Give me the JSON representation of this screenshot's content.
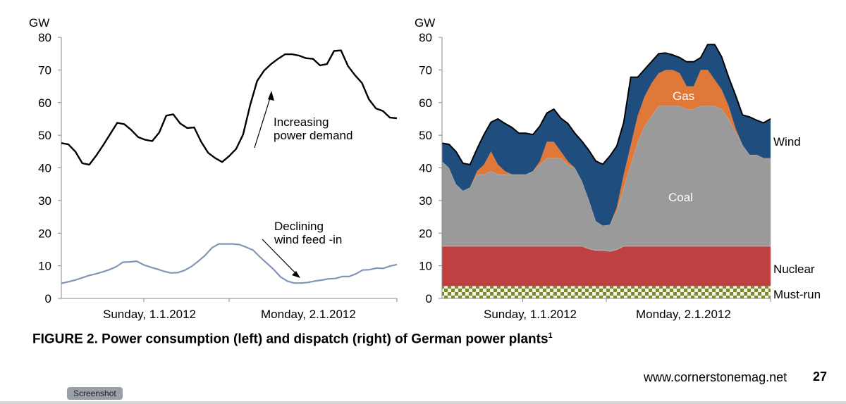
{
  "chart_data": [
    {
      "type": "line",
      "unit": "GW",
      "yticks": [
        "80",
        "70",
        "60",
        "50",
        "40",
        "30",
        "20",
        "10",
        "0"
      ],
      "ylim": [
        0,
        80
      ],
      "xlim": [
        0,
        47
      ],
      "xlabels": [
        "Sunday,  1.1.2012",
        "Monday,  2.1.2012"
      ],
      "series": [
        {
          "name": "Power demand",
          "color": "#000000",
          "values": [
            47.6,
            47.2,
            45,
            41.4,
            41,
            43.8,
            47,
            50.4,
            53.8,
            53.4,
            51.6,
            49.4,
            48.6,
            48.2,
            50.8,
            56,
            56.4,
            53.6,
            52.2,
            52.4,
            48,
            44.6,
            43,
            41.8,
            43.6,
            45.8,
            50.2,
            59.2,
            66.6,
            69.8,
            71.8,
            73.4,
            74.8,
            74.8,
            74.4,
            73.6,
            73.4,
            71.4,
            71.8,
            75.8,
            76,
            71.2,
            68.4,
            66,
            61,
            58.2,
            57.4,
            55.4,
            55.2
          ]
        },
        {
          "name": "Wind feed-in",
          "color": "#8096b6",
          "values": [
            4.6,
            5.1,
            5.6,
            6.3,
            7,
            7.5,
            8.1,
            8.8,
            9.7,
            11.1,
            11.2,
            11.4,
            10.3,
            9.6,
            9,
            8.3,
            7.8,
            7.9,
            8.6,
            9.8,
            11.4,
            13.2,
            15.5,
            16.7,
            16.7,
            16.7,
            16.5,
            15.7,
            14.8,
            12.7,
            10.8,
            8.9,
            6.6,
            5.3,
            4.7,
            4.7,
            4.9,
            5.3,
            5.6,
            6,
            6.1,
            6.7,
            6.7,
            7.5,
            8.7,
            8.8,
            9.3,
            9.2,
            9.9,
            10.4
          ]
        }
      ],
      "annotations": {
        "demand": [
          "Increasing",
          "power demand"
        ],
        "wind": [
          "Declining",
          "wind feed -in"
        ]
      }
    },
    {
      "type": "area",
      "stacked": true,
      "unit": "GW",
      "yticks": [
        "80",
        "70",
        "60",
        "50",
        "40",
        "30",
        "20",
        "10",
        "0"
      ],
      "ylim": [
        0,
        80
      ],
      "xlim": [
        0,
        47
      ],
      "xlabels": [
        "Sunday,  1.1.2012",
        "Monday,  2.1.2012"
      ],
      "series": [
        {
          "name": "Must-run",
          "label": "Must-run",
          "color": "#7b8a2e",
          "values": [
            3.8,
            3.8,
            3.8,
            3.8,
            3.8,
            3.8,
            3.8,
            3.8,
            3.8,
            3.8,
            3.8,
            3.8,
            3.8,
            3.8,
            3.8,
            3.8,
            3.8,
            3.8,
            3.8,
            3.8,
            3.8,
            3.8,
            3.8,
            3.8,
            3.8,
            3.8,
            3.8,
            3.8,
            3.8,
            3.8,
            3.8,
            3.8,
            3.8,
            3.8,
            3.8,
            3.8,
            3.8,
            3.8,
            3.8,
            3.8,
            3.8,
            3.8,
            3.8,
            3.8,
            3.8,
            3.8,
            3.8,
            3.8
          ]
        },
        {
          "name": "Nuclear",
          "label": "Nuclear",
          "color": "#bf4040",
          "values": [
            12.2,
            12.2,
            12.2,
            12.2,
            12.2,
            12.2,
            12.2,
            12.2,
            12.2,
            12.2,
            12.2,
            12.2,
            12.2,
            12.2,
            12.2,
            12.2,
            12.2,
            12.2,
            12.2,
            12.2,
            12.2,
            11.4,
            10.9,
            10.9,
            10.6,
            11.1,
            12.2,
            12.2,
            12.2,
            12.2,
            12.2,
            12.2,
            12.2,
            12.2,
            12.2,
            12.2,
            12.2,
            12.2,
            12.2,
            12.2,
            12.2,
            12.2,
            12.2,
            12.2,
            12.2,
            12.2,
            12.2,
            12.2
          ]
        },
        {
          "name": "Coal",
          "label": "Coal",
          "color": "#9a9a9a",
          "values": [
            26,
            24,
            19,
            17,
            18,
            22,
            22,
            23,
            22,
            22,
            22,
            22,
            22,
            23,
            25,
            27,
            27,
            27,
            25,
            24,
            20,
            15,
            9,
            7.6,
            8.2,
            12,
            18,
            25,
            32,
            37,
            40,
            43,
            43,
            43,
            43,
            42,
            42,
            43,
            43,
            43,
            42,
            39,
            35,
            31,
            28,
            28,
            27,
            27
          ]
        },
        {
          "name": "Gas",
          "label": "Gas",
          "color": "#e0783a",
          "values": [
            0,
            0,
            0,
            0,
            0,
            1,
            3,
            6,
            3,
            1,
            0,
            0,
            0,
            0,
            1,
            5,
            5,
            2,
            1,
            0,
            0,
            0,
            0,
            0,
            0,
            1,
            4,
            6,
            8,
            9,
            10,
            10,
            11,
            11,
            10,
            7,
            7,
            11,
            11,
            8,
            6,
            4,
            1,
            0,
            0,
            0,
            0,
            0
          ]
        },
        {
          "name": "Wind",
          "label": "Wind",
          "color": "#1f4e7e",
          "values": [
            5.6,
            7.2,
            10,
            8.4,
            7,
            6.8,
            9.2,
            9,
            14,
            14.6,
            14.4,
            12.6,
            12.6,
            11.2,
            10.8,
            8.8,
            10,
            10.2,
            11.6,
            10.6,
            12.2,
            15.2,
            18.4,
            18.8,
            21,
            18.8,
            16,
            20.8,
            11.8,
            8.2,
            6.6,
            6,
            5.2,
            4.6,
            4.8,
            7.5,
            7.5,
            3.8,
            7.8,
            10.8,
            10,
            8.8,
            10.2,
            9.2,
            11.6,
            10.6,
            10.8,
            12
          ]
        }
      ],
      "inside_labels": {
        "gas": "Gas",
        "coal": "Coal"
      }
    }
  ],
  "caption": {
    "text": "FIGURE 2. Power consumption (left) and dispatch (right) of German power plants",
    "superscript": "1"
  },
  "footer": {
    "url": "www.cornerstonemag.net",
    "page_number": "27"
  },
  "tooltip": "Screenshot"
}
